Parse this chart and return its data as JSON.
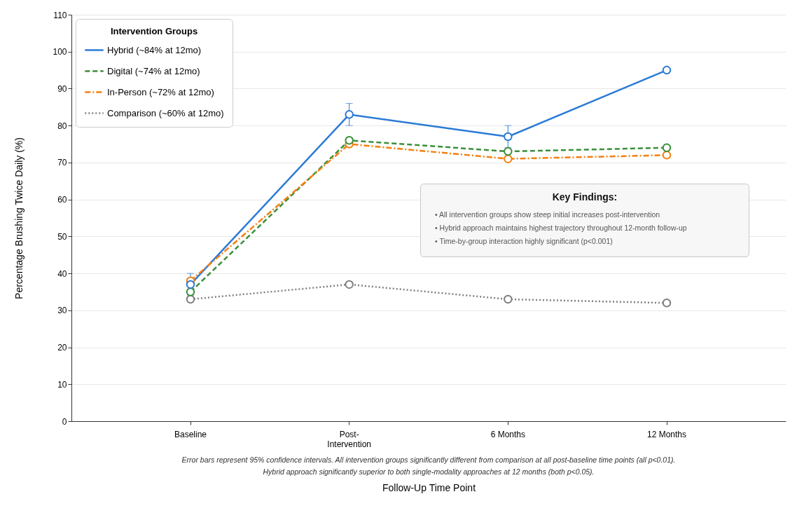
{
  "chart_data": {
    "type": "line",
    "xlabel": "Follow-Up Time Point",
    "ylabel": "Percentage Brushing Twice Daily (%)",
    "legend_title": "Intervention Groups",
    "categories": [
      "Baseline",
      "Post-\nIntervention",
      "6 Months",
      "12 Months"
    ],
    "ylim": [
      0,
      110
    ],
    "yticks": [
      0,
      10,
      20,
      30,
      40,
      50,
      60,
      70,
      80,
      90,
      100,
      110
    ],
    "grid": "y",
    "legend": "top left",
    "marker": "circle",
    "series": [
      {
        "name": "Hybrid (~84% at 12mo)",
        "color": "#2b7bd6",
        "line_style": "solid",
        "values": [
          37,
          83,
          77,
          95
        ],
        "errors": [
          3,
          3,
          3,
          null
        ]
      },
      {
        "name": "Digital (~74% at 12mo)",
        "color": "#3a8f3a",
        "line_style": "dashed",
        "values": [
          35,
          76,
          73,
          74
        ]
      },
      {
        "name": "In-Person (~72% at 12mo)",
        "color": "#f57f0f",
        "line_style": "dashdot",
        "values": [
          38,
          75,
          71,
          72
        ]
      },
      {
        "name": "Comparison (~60% at 12mo)",
        "color": "#808080",
        "line_style": "dotted",
        "values": [
          33,
          37,
          33,
          32
        ]
      }
    ],
    "annotations": [
      "Key Findings:",
      "• All intervention groups show steep initial increases post-intervention",
      "• Hybrid approach maintains highest trajectory throughout 12-month follow-up",
      "• Time-by-group interaction highly significant (p<0.001)",
      "Error bars represent 95% confidence intervals. All intervention groups significantly different from comparison at all post-baseline time points (all p<0.01).",
      "Hybrid approach significantly superior to both single-modality approaches at 12 months (both p<0.05)."
    ]
  }
}
